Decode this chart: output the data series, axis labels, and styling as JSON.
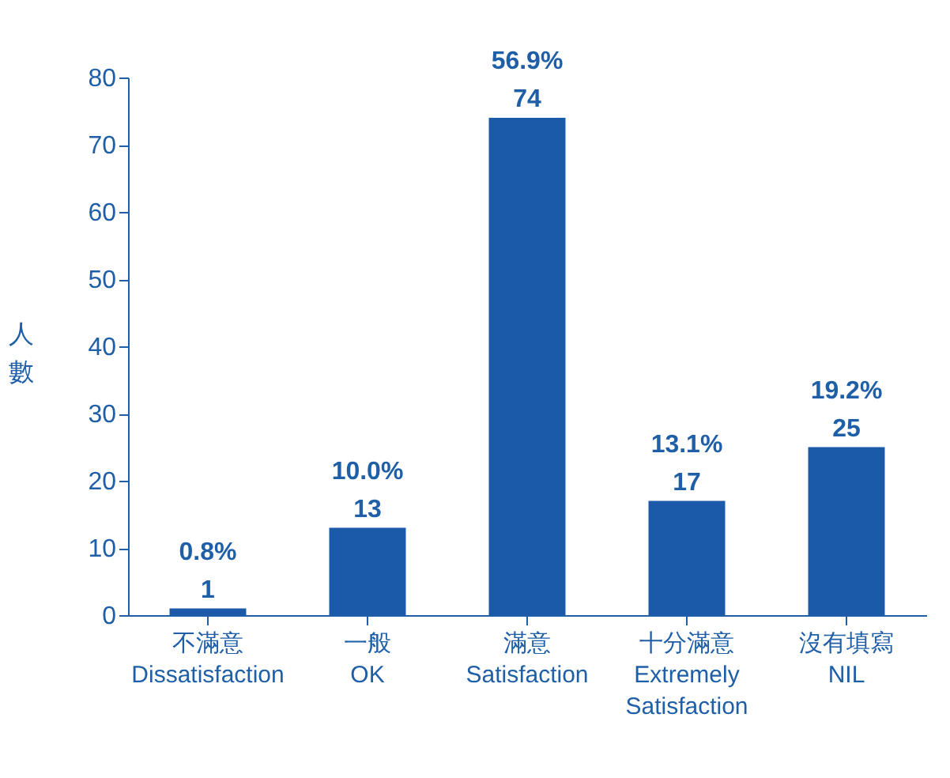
{
  "chart_data": {
    "type": "bar",
    "ylabel": "人數",
    "categories": [
      "不滿意\nDissatisfaction",
      "一般\nOK",
      "滿意\nSatisfaction",
      "十分滿意\nExtremely\nSatisfaction",
      "沒有填寫\nNIL"
    ],
    "values": [
      1,
      13,
      74,
      17,
      25
    ],
    "color": "#1a5aa8",
    "value_labels": [
      "0.8%\n1",
      "10.0%\n13",
      "56.9%\n74",
      "13.1%\n17",
      "19.2%\n25"
    ],
    "ylim": [
      0,
      80
    ],
    "yticks": [
      0,
      10,
      20,
      30,
      40,
      50,
      60,
      70,
      80
    ],
    "grid": false
  }
}
